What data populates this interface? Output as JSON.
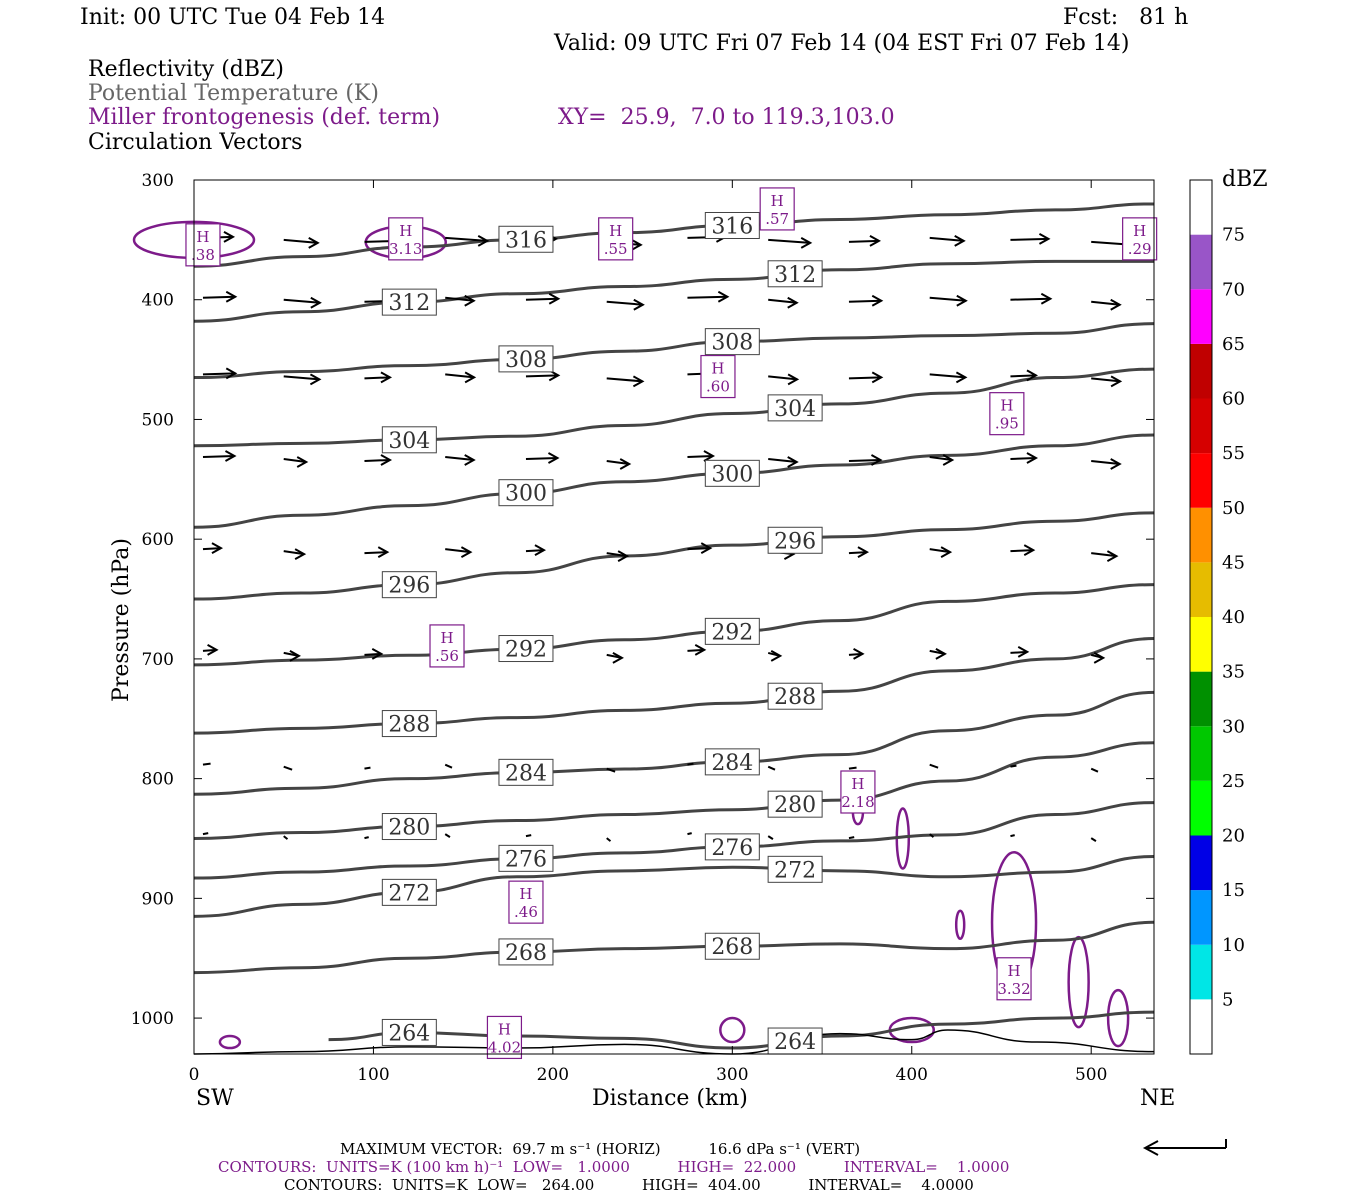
{
  "header": {
    "init": "Init: 00 UTC Tue 04 Feb 14",
    "fcst": "Fcst:   81 h",
    "valid": "Valid: 09 UTC Fri 07 Feb 14 (04 EST Fri 07 Feb 14)",
    "line1": "Reflectivity (dBZ)",
    "line2": "Potential Temperature (K)",
    "line3": "Miller frontogenesis (def. term)",
    "xy": "XY=  25.9,  7.0 to 119.3,103.0",
    "line4": "Circulation Vectors"
  },
  "colors": {
    "theta": "#444444",
    "frontogenesis": "#7d1b8a",
    "vector": "#000000"
  },
  "chart_data": {
    "type": "line",
    "xlabel": "Distance (km)",
    "ylabel": "Pressure (hPa)",
    "xlim": [
      0,
      535
    ],
    "ylim": [
      1030,
      300
    ],
    "y_log": false,
    "x_ticks": [
      "0",
      "100",
      "200",
      "300",
      "400",
      "500"
    ],
    "y_ticks": [
      "300",
      "400",
      "500",
      "600",
      "700",
      "800",
      "900",
      "1000"
    ],
    "left_end_label": "SW",
    "right_end_label": "NE",
    "theta_contours": [
      {
        "value": 316,
        "pts": [
          [
            0,
            372
          ],
          [
            60,
            364
          ],
          [
            120,
            356
          ],
          [
            180,
            350
          ],
          [
            240,
            344
          ],
          [
            300,
            338
          ],
          [
            360,
            333
          ],
          [
            420,
            329
          ],
          [
            480,
            325
          ],
          [
            535,
            320
          ]
        ]
      },
      {
        "value": 312,
        "pts": [
          [
            0,
            418
          ],
          [
            60,
            410
          ],
          [
            120,
            402
          ],
          [
            180,
            395
          ],
          [
            240,
            389
          ],
          [
            300,
            383
          ],
          [
            360,
            375
          ],
          [
            420,
            370
          ],
          [
            480,
            368
          ],
          [
            535,
            368
          ]
        ]
      },
      {
        "value": 308,
        "pts": [
          [
            0,
            465
          ],
          [
            60,
            460
          ],
          [
            120,
            455
          ],
          [
            180,
            450
          ],
          [
            240,
            443
          ],
          [
            300,
            435
          ],
          [
            360,
            432
          ],
          [
            420,
            430
          ],
          [
            480,
            428
          ],
          [
            535,
            420
          ]
        ]
      },
      {
        "value": 304,
        "pts": [
          [
            0,
            522
          ],
          [
            60,
            520
          ],
          [
            120,
            517
          ],
          [
            180,
            514
          ],
          [
            240,
            505
          ],
          [
            300,
            495
          ],
          [
            360,
            487
          ],
          [
            420,
            478
          ],
          [
            480,
            465
          ],
          [
            535,
            458
          ]
        ]
      },
      {
        "value": 300,
        "pts": [
          [
            0,
            590
          ],
          [
            60,
            580
          ],
          [
            120,
            572
          ],
          [
            180,
            562
          ],
          [
            240,
            552
          ],
          [
            300,
            545
          ],
          [
            360,
            538
          ],
          [
            420,
            530
          ],
          [
            480,
            522
          ],
          [
            535,
            513
          ]
        ]
      },
      {
        "value": 296,
        "pts": [
          [
            0,
            650
          ],
          [
            60,
            645
          ],
          [
            120,
            638
          ],
          [
            180,
            628
          ],
          [
            240,
            614
          ],
          [
            300,
            605
          ],
          [
            360,
            598
          ],
          [
            420,
            592
          ],
          [
            480,
            585
          ],
          [
            535,
            578
          ]
        ]
      },
      {
        "value": 292,
        "pts": [
          [
            0,
            705
          ],
          [
            60,
            701
          ],
          [
            120,
            697
          ],
          [
            180,
            692
          ],
          [
            240,
            684
          ],
          [
            300,
            677
          ],
          [
            360,
            668
          ],
          [
            420,
            652
          ],
          [
            480,
            645
          ],
          [
            535,
            638
          ]
        ]
      },
      {
        "value": 288,
        "pts": [
          [
            0,
            762
          ],
          [
            60,
            758
          ],
          [
            120,
            754
          ],
          [
            180,
            749
          ],
          [
            240,
            743
          ],
          [
            300,
            737
          ],
          [
            360,
            727
          ],
          [
            420,
            710
          ],
          [
            480,
            700
          ],
          [
            535,
            683
          ]
        ]
      },
      {
        "value": 284,
        "pts": [
          [
            0,
            813
          ],
          [
            60,
            808
          ],
          [
            120,
            800
          ],
          [
            180,
            795
          ],
          [
            240,
            792
          ],
          [
            300,
            786
          ],
          [
            360,
            780
          ],
          [
            420,
            760
          ],
          [
            480,
            747
          ],
          [
            535,
            728
          ]
        ]
      },
      {
        "value": 280,
        "pts": [
          [
            0,
            850
          ],
          [
            60,
            845
          ],
          [
            120,
            840
          ],
          [
            180,
            835
          ],
          [
            240,
            830
          ],
          [
            300,
            826
          ],
          [
            360,
            818
          ],
          [
            420,
            802
          ],
          [
            480,
            782
          ],
          [
            535,
            770
          ]
        ]
      },
      {
        "value": 276,
        "pts": [
          [
            0,
            883
          ],
          [
            60,
            878
          ],
          [
            120,
            873
          ],
          [
            180,
            867
          ],
          [
            240,
            862
          ],
          [
            300,
            857
          ],
          [
            360,
            852
          ],
          [
            420,
            847
          ],
          [
            480,
            830
          ],
          [
            535,
            820
          ]
        ]
      },
      {
        "value": 272,
        "pts": [
          [
            0,
            915
          ],
          [
            60,
            905
          ],
          [
            120,
            895
          ],
          [
            180,
            882
          ],
          [
            240,
            877
          ],
          [
            300,
            874
          ],
          [
            360,
            877
          ],
          [
            420,
            882
          ],
          [
            480,
            878
          ],
          [
            535,
            865
          ]
        ]
      },
      {
        "value": 268,
        "pts": [
          [
            0,
            962
          ],
          [
            60,
            958
          ],
          [
            120,
            950
          ],
          [
            180,
            945
          ],
          [
            240,
            942
          ],
          [
            300,
            940
          ],
          [
            360,
            938
          ],
          [
            420,
            942
          ],
          [
            480,
            935
          ],
          [
            535,
            920
          ]
        ]
      },
      {
        "value": 264,
        "pts": [
          [
            75,
            1018
          ],
          [
            120,
            1012
          ],
          [
            180,
            1015
          ],
          [
            240,
            1017
          ],
          [
            300,
            1025
          ],
          [
            360,
            1015
          ],
          [
            420,
            1005
          ],
          [
            480,
            1000
          ],
          [
            535,
            995
          ]
        ]
      }
    ],
    "terrain": [
      [
        0,
        1030
      ],
      [
        60,
        1028
      ],
      [
        120,
        1024
      ],
      [
        180,
        1025
      ],
      [
        240,
        1022
      ],
      [
        300,
        1030
      ],
      [
        360,
        1013
      ],
      [
        400,
        1018
      ],
      [
        420,
        1010
      ],
      [
        470,
        1020
      ],
      [
        535,
        1028
      ]
    ],
    "frontogenesis_maxima": [
      {
        "label": "H",
        "value": ".38",
        "x": 5,
        "p": 355
      },
      {
        "label": "H",
        "value": "3.13",
        "x": 118,
        "p": 350
      },
      {
        "label": "H",
        "value": ".57",
        "x": 325,
        "p": 325
      },
      {
        "label": "H",
        "value": ".55",
        "x": 235,
        "p": 350
      },
      {
        "label": "H",
        "value": ".29",
        "x": 527,
        "p": 350
      },
      {
        "label": "H",
        "value": ".60",
        "x": 292,
        "p": 465
      },
      {
        "label": "H",
        "value": ".95",
        "x": 453,
        "p": 496
      },
      {
        "label": "H",
        "value": ".56",
        "x": 141,
        "p": 690
      },
      {
        "label": "H",
        "value": "2.18",
        "x": 370,
        "p": 812
      },
      {
        "label": "H",
        "value": ".46",
        "x": 185,
        "p": 904
      },
      {
        "label": "H",
        "value": "3.32",
        "x": 457,
        "p": 968
      },
      {
        "label": "H",
        "value": "4.02",
        "x": 173,
        "p": 1017
      }
    ],
    "colorbar": {
      "unit": "dBZ",
      "levels": [
        "5",
        "10",
        "15",
        "20",
        "25",
        "30",
        "35",
        "40",
        "45",
        "50",
        "55",
        "60",
        "65",
        "70",
        "75"
      ],
      "colors": [
        "#ffffff",
        "#00e6e6",
        "#0096ff",
        "#0000e6",
        "#00ff00",
        "#00c800",
        "#009000",
        "#ffff00",
        "#e6bc00",
        "#ff9000",
        "#ff0000",
        "#d60000",
        "#c00000",
        "#ff00ff",
        "#9955c8",
        "#ffffff"
      ]
    }
  },
  "footer": {
    "max_vector": "MAXIMUM VECTOR:  69.7 m s⁻¹ (HORIZ)          16.6 dPa s⁻¹ (VERT)",
    "contours1": "CONTOURS:  UNITS=K (100 km h)⁻¹  LOW=   1.0000          HIGH=  22.000          INTERVAL=    1.0000",
    "contours2": "CONTOURS:  UNITS=K  LOW=   264.00          HIGH=  404.00          INTERVAL=    4.0000"
  }
}
